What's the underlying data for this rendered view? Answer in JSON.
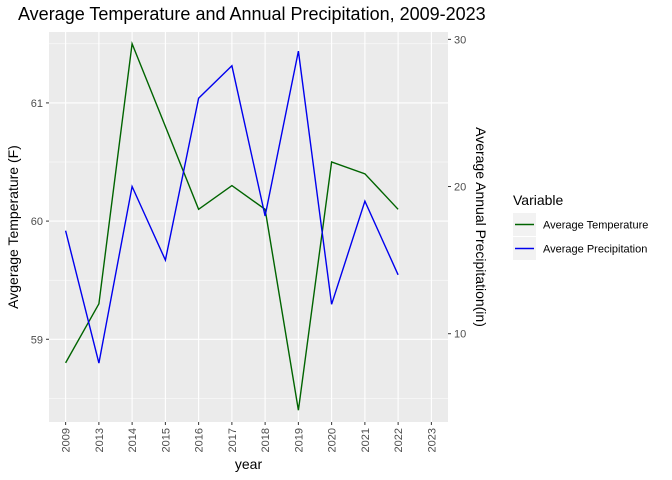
{
  "chart_data": {
    "type": "line",
    "title": "Average Temperature and Annual Precipitation,  2009-2023",
    "xlabel": "year",
    "ylabel_left": "Avgerage Temperature (F)",
    "ylabel_right": "Average Annual Precipitation(in)",
    "categories": [
      "2009",
      "2013",
      "2014",
      "2015",
      "2016",
      "2017",
      "2018",
      "2019",
      "2020",
      "2021",
      "2022",
      "2023"
    ],
    "y_left": {
      "ticks": [
        59,
        60,
        61
      ],
      "range": [
        58.3,
        61.6
      ]
    },
    "y_right": {
      "ticks": [
        10,
        20,
        30
      ],
      "range": [
        4.0,
        30.5
      ]
    },
    "grid": true,
    "legend_position": "right",
    "legend_title": "Variable",
    "series": [
      {
        "name": "Average Temperature",
        "axis": "left",
        "color": "#006400",
        "values": [
          58.8,
          59.3,
          61.5,
          60.8,
          60.1,
          60.3,
          60.1,
          58.4,
          60.5,
          60.4,
          60.1,
          null
        ]
      },
      {
        "name": "Average Precipitation",
        "axis": "right",
        "color": "#0000ee",
        "values": [
          17.0,
          8.0,
          20.0,
          15.0,
          26.0,
          28.2,
          18.0,
          29.2,
          12.0,
          19.0,
          14.0,
          null
        ]
      }
    ]
  }
}
